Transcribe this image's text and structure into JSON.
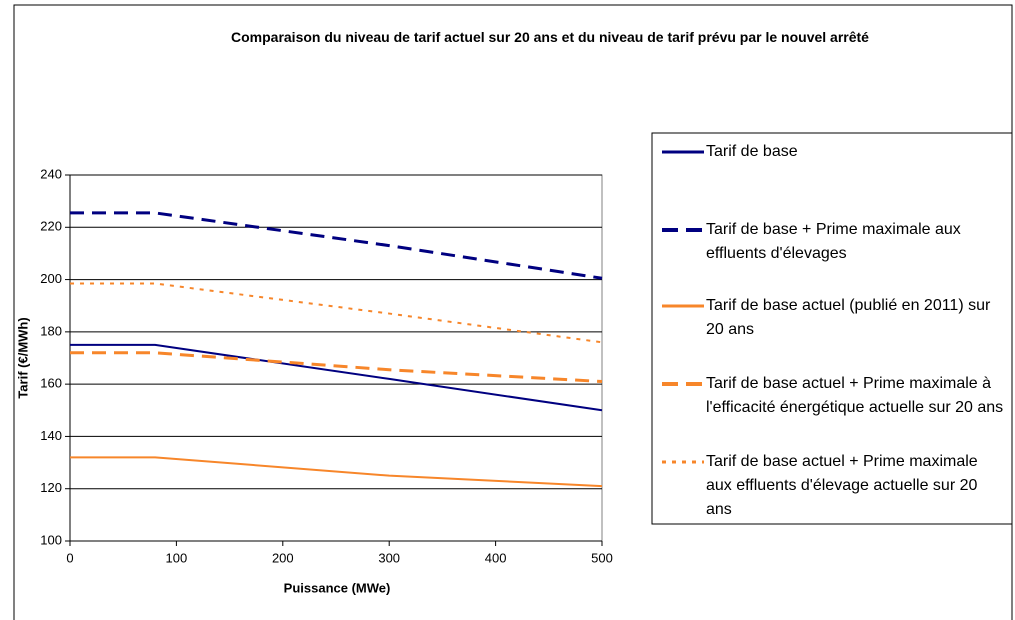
{
  "chart_data": {
    "type": "line",
    "title": "Comparaison du niveau de tarif actuel sur 20 ans et du niveau de tarif prévu par le nouvel arrêté",
    "x_label": "Puissance (MWe)",
    "y_label": "Tarif (€/MWh)",
    "x": [
      0,
      80,
      300,
      500
    ],
    "series": [
      {
        "name": "Tarif de base",
        "color": "#000080",
        "line_style": "solid",
        "values": [
          175,
          175,
          162,
          150
        ]
      },
      {
        "name": "Tarif de base + Prime maximale aux effluents d'élevages",
        "color": "#000080",
        "line_style": "dashed",
        "values": [
          225.5,
          225.5,
          213,
          200.5
        ]
      },
      {
        "name": "Tarif de base actuel (publié en 2011) sur 20 ans",
        "color": "#f7862a",
        "line_style": "solid",
        "values": [
          132,
          132,
          125,
          121
        ]
      },
      {
        "name": "Tarif de base actuel + Prime maximale à l'efficacité énergétique actuelle sur 20 ans",
        "color": "#f7862a",
        "line_style": "dashed",
        "values": [
          172,
          172,
          165.5,
          161
        ]
      },
      {
        "name": "Tarif de base actuel + Prime maximale aux effluents d'élevage actuelle sur 20 ans",
        "color": "#f7862a",
        "line_style": "dotted",
        "values": [
          198.5,
          198.5,
          187,
          176
        ]
      }
    ],
    "xlim": [
      0,
      500
    ],
    "xticks": [
      0,
      100,
      200,
      300,
      400,
      500
    ],
    "ylim": [
      100,
      240
    ],
    "yticks": [
      100,
      120,
      140,
      160,
      180,
      200,
      220,
      240
    ],
    "grid": true,
    "legend": "right"
  }
}
